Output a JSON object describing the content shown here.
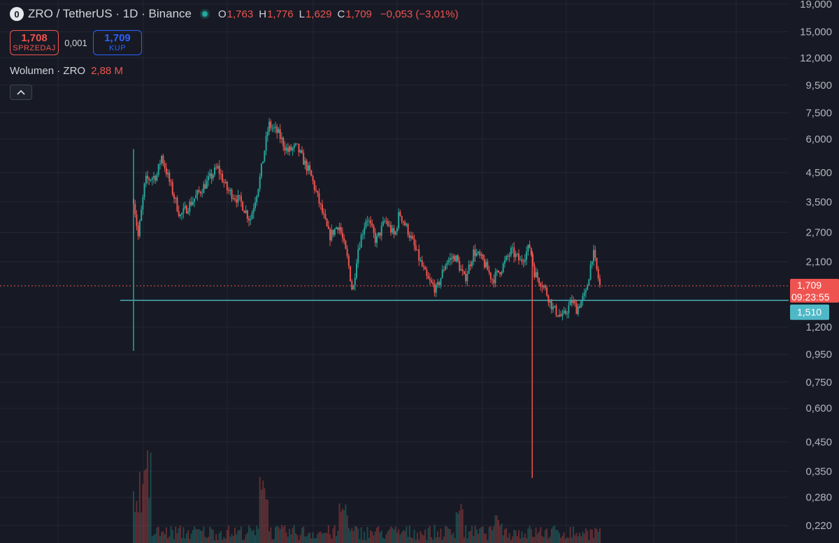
{
  "header": {
    "logo_letter": "0",
    "symbol": "ZRO / TetherUS · 1D · Binance",
    "ohlc": {
      "o_label": "O",
      "o_value": "1,763",
      "h_label": "H",
      "h_value": "1,776",
      "l_label": "L",
      "l_value": "1,629",
      "c_label": "C",
      "c_value": "1,709"
    },
    "change": "−0,053 (−3,01%)"
  },
  "trade": {
    "sell_price": "1,708",
    "sell_label": "SPRZEDAJ",
    "spread": "0,001",
    "buy_price": "1,709",
    "buy_label": "KUP"
  },
  "volume": {
    "label": "Wolumen · ZRO",
    "value": "2,88 M"
  },
  "colors": {
    "background": "#171A24",
    "up": "#26A69A",
    "down": "#EF5350",
    "horizontal_line": "#4FB8C6",
    "text": "#D1D4DC",
    "axis_text": "#B2B5BE",
    "grid": "#232733"
  },
  "chart_data": {
    "type": "candlestick",
    "y_scale": "log",
    "grid": true,
    "y_ticks": [
      "19,000",
      "15,000",
      "12,000",
      "9,500",
      "7,500",
      "6,000",
      "4,500",
      "3,500",
      "2,700",
      "2,100",
      "1,200",
      "0,950",
      "0,750",
      "0,600",
      "0,450",
      "0,350",
      "0,280",
      "0,220"
    ],
    "last_price_tag": {
      "price": "1,709",
      "countdown": "09:23:55"
    },
    "horizontal_line": {
      "value": 1.51,
      "label": "1,510"
    },
    "price_path": [
      {
        "t": 0.0,
        "p": 3.6
      },
      {
        "t": 0.01,
        "p": 2.6
      },
      {
        "t": 0.025,
        "p": 4.2
      },
      {
        "t": 0.05,
        "p": 4.4
      },
      {
        "t": 0.06,
        "p": 5.2
      },
      {
        "t": 0.08,
        "p": 4.0
      },
      {
        "t": 0.1,
        "p": 3.1
      },
      {
        "t": 0.13,
        "p": 3.6
      },
      {
        "t": 0.16,
        "p": 4.2
      },
      {
        "t": 0.18,
        "p": 4.7
      },
      {
        "t": 0.2,
        "p": 3.9
      },
      {
        "t": 0.23,
        "p": 3.5
      },
      {
        "t": 0.25,
        "p": 3.0
      },
      {
        "t": 0.27,
        "p": 4.2
      },
      {
        "t": 0.29,
        "p": 6.8
      },
      {
        "t": 0.31,
        "p": 6.3
      },
      {
        "t": 0.33,
        "p": 5.4
      },
      {
        "t": 0.35,
        "p": 5.6
      },
      {
        "t": 0.38,
        "p": 4.4
      },
      {
        "t": 0.4,
        "p": 3.4
      },
      {
        "t": 0.42,
        "p": 2.6
      },
      {
        "t": 0.44,
        "p": 2.9
      },
      {
        "t": 0.46,
        "p": 2.1
      },
      {
        "t": 0.47,
        "p": 1.6
      },
      {
        "t": 0.48,
        "p": 2.3
      },
      {
        "t": 0.5,
        "p": 3.1
      },
      {
        "t": 0.52,
        "p": 2.5
      },
      {
        "t": 0.54,
        "p": 3.0
      },
      {
        "t": 0.56,
        "p": 2.6
      },
      {
        "t": 0.57,
        "p": 3.2
      },
      {
        "t": 0.59,
        "p": 2.7
      },
      {
        "t": 0.61,
        "p": 2.2
      },
      {
        "t": 0.63,
        "p": 1.8
      },
      {
        "t": 0.65,
        "p": 1.65
      },
      {
        "t": 0.67,
        "p": 2.1
      },
      {
        "t": 0.69,
        "p": 2.2
      },
      {
        "t": 0.71,
        "p": 1.8
      },
      {
        "t": 0.73,
        "p": 2.3
      },
      {
        "t": 0.75,
        "p": 2.1
      },
      {
        "t": 0.77,
        "p": 1.8
      },
      {
        "t": 0.79,
        "p": 2.0
      },
      {
        "t": 0.81,
        "p": 2.3
      },
      {
        "t": 0.83,
        "p": 2.1
      },
      {
        "t": 0.85,
        "p": 2.4
      },
      {
        "t": 0.86,
        "p": 1.9
      },
      {
        "t": 0.88,
        "p": 1.7
      },
      {
        "t": 0.9,
        "p": 1.4
      },
      {
        "t": 0.92,
        "p": 1.3
      },
      {
        "t": 0.94,
        "p": 1.5
      },
      {
        "t": 0.95,
        "p": 1.4
      },
      {
        "t": 0.97,
        "p": 1.6
      },
      {
        "t": 0.985,
        "p": 2.3
      },
      {
        "t": 1.0,
        "p": 1.709
      }
    ],
    "notable_wicks": [
      {
        "t": 0.0,
        "low": 0.98,
        "high": 5.5
      },
      {
        "t": 0.855,
        "low": 0.33,
        "high": 2.3
      }
    ]
  }
}
